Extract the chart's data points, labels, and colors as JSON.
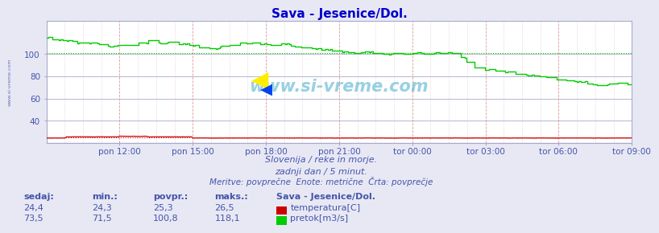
{
  "title": "Sava - Jesenice/Dol.",
  "title_color": "#0000cc",
  "bg_color": "#e8e8f4",
  "plot_bg_color": "#ffffff",
  "grid_color_h": "#aaaacc",
  "grid_color_v": "#dd9999",
  "text_color": "#4455aa",
  "temp_color": "#cc0000",
  "flow_color": "#00cc00",
  "blue_line_color": "#0000aa",
  "watermark_color": "#44aacc",
  "ylim": [
    20,
    130
  ],
  "yticks": [
    40,
    60,
    80,
    100
  ],
  "n_points": 288,
  "xtick_labels": [
    "pon 12:00",
    "pon 15:00",
    "pon 18:00",
    "pon 21:00",
    "tor 00:00",
    "tor 03:00",
    "tor 06:00",
    "tor 09:00"
  ],
  "subtitle1": "Slovenija / reke in morje.",
  "subtitle2": "zadnji dan / 5 minut.",
  "subtitle3": "Meritve: povprečne  Enote: metrične  Črta: povprečje",
  "legend_title": "Sava - Jesenice/Dol.",
  "col_headers": [
    "sedaj:",
    "min.:",
    "povpr.:",
    "maks.:"
  ],
  "temp_row": [
    "24,4",
    "24,3",
    "25,3",
    "26,5",
    "temperatura[C]"
  ],
  "flow_row": [
    "73,5",
    "71,5",
    "100,8",
    "118,1",
    "pretok[m3/s]"
  ],
  "temp_avg": 25.3,
  "flow_avg": 100.8
}
